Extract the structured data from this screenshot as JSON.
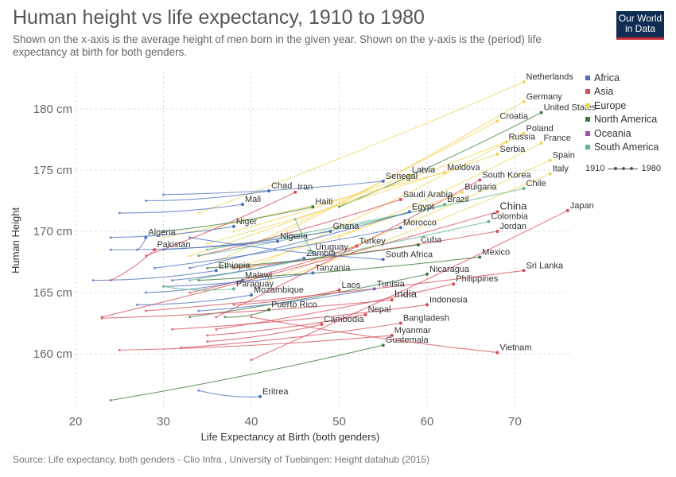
{
  "header": {
    "title": "Human height vs life expectancy, 1910 to 1980",
    "subtitle": "Shown on the x-axis is the average height of men born in the given year. Shown on the y-axis is the (period) life expectancy at birth for both genders.",
    "logo_line1": "Our World",
    "logo_line2": "in Data",
    "source": "Source: Life expectancy, both genders - Clio Infra , University of Tuebingen: Height datahub (2015)"
  },
  "legend": {
    "regions": [
      {
        "name": "Africa",
        "color": "#4c6fbf"
      },
      {
        "name": "Asia",
        "color": "#d64b55"
      },
      {
        "name": "Europe",
        "color": "#f2d35a"
      },
      {
        "name": "North America",
        "color": "#3a7a3a"
      },
      {
        "name": "Oceania",
        "color": "#a64cb5"
      },
      {
        "name": "South America",
        "color": "#5cb88a"
      }
    ],
    "timeline_start": "1910",
    "timeline_end": "1980"
  },
  "chart_data": {
    "type": "scatter",
    "xlabel": "Life Expectancy at Birth (both genders)",
    "ylabel": "Human Height",
    "x_ticks": [
      "20",
      "30",
      "40",
      "50",
      "60",
      "70"
    ],
    "y_ticks": [
      "160 cm",
      "165 cm",
      "170 cm",
      "175 cm",
      "180 cm"
    ],
    "xlim": [
      20,
      76
    ],
    "ylim": [
      156,
      182.8
    ],
    "grid": true,
    "legend_position": "right",
    "countries": [
      {
        "name": "Netherlands",
        "region": "Europe",
        "x": 71,
        "y": 182.2,
        "start": [
          34,
          171.5
        ]
      },
      {
        "name": "Germany",
        "region": "Europe",
        "x": 71,
        "y": 180.6,
        "start": [
          44,
          170.0
        ]
      },
      {
        "name": "United States",
        "region": "North America",
        "x": 73,
        "y": 179.7,
        "start": [
          50,
          172.0
        ]
      },
      {
        "name": "Croatia",
        "region": "Europe",
        "x": 68,
        "y": 179.0,
        "start": [
          36,
          167.5
        ]
      },
      {
        "name": "Poland",
        "region": "Europe",
        "x": 71,
        "y": 178.0,
        "start": [
          40,
          167.0
        ]
      },
      {
        "name": "France",
        "region": "Europe",
        "x": 73,
        "y": 177.2,
        "start": [
          50,
          169.5
        ]
      },
      {
        "name": "Russia",
        "region": "Europe",
        "x": 69,
        "y": 177.3,
        "start": [
          33,
          168.0
        ]
      },
      {
        "name": "Serbia",
        "region": "Europe",
        "x": 68,
        "y": 176.3,
        "start": [
          35,
          169.0
        ]
      },
      {
        "name": "Spain",
        "region": "Europe",
        "x": 74,
        "y": 175.8,
        "start": [
          42,
          166.0
        ]
      },
      {
        "name": "Italy",
        "region": "Europe",
        "x": 74,
        "y": 174.7,
        "start": [
          45,
          166.5
        ]
      },
      {
        "name": "Latvia",
        "region": "Europe",
        "x": 58,
        "y": 174.6,
        "start": [
          38,
          170.0
        ]
      },
      {
        "name": "Moldova",
        "region": "Europe",
        "x": 62,
        "y": 174.8,
        "start": [
          30,
          169.5
        ]
      },
      {
        "name": "South Korea",
        "region": "Asia",
        "x": 66,
        "y": 174.2,
        "start": [
          36,
          163.0
        ]
      },
      {
        "name": "Senegal",
        "region": "Africa",
        "x": 55,
        "y": 174.1,
        "start": [
          30,
          173.0
        ]
      },
      {
        "name": "Chile",
        "region": "South America",
        "x": 71,
        "y": 173.5,
        "start": [
          35,
          168.5
        ]
      },
      {
        "name": "Chad",
        "region": "Africa",
        "x": 42,
        "y": 173.3,
        "start": [
          28,
          172.5
        ]
      },
      {
        "name": "Iran",
        "region": "Asia",
        "x": 45,
        "y": 173.2,
        "start": [
          28,
          168.0
        ]
      },
      {
        "name": "Bulgaria",
        "region": "Europe",
        "x": 64,
        "y": 173.2,
        "start": [
          38,
          167.0
        ]
      },
      {
        "name": "Saudi Arabia",
        "region": "Asia",
        "x": 57,
        "y": 172.6,
        "start": [
          34,
          168.0
        ]
      },
      {
        "name": "Mali",
        "region": "Africa",
        "x": 39,
        "y": 172.2,
        "start": [
          25,
          171.5
        ]
      },
      {
        "name": "Haiti",
        "region": "North America",
        "x": 47,
        "y": 172.0,
        "start": [
          30,
          170.0
        ]
      },
      {
        "name": "Brazil",
        "region": "South America",
        "x": 62,
        "y": 172.2,
        "start": [
          34,
          168.0
        ]
      },
      {
        "name": "China",
        "region": "Asia",
        "x": 68,
        "y": 171.6,
        "start": [
          23,
          163.0
        ]
      },
      {
        "name": "Egypt",
        "region": "Africa",
        "x": 58,
        "y": 171.6,
        "start": [
          33,
          167.0
        ]
      },
      {
        "name": "Colombia",
        "region": "South America",
        "x": 67,
        "y": 170.8,
        "start": [
          33,
          166.0
        ]
      },
      {
        "name": "Niger",
        "region": "Africa",
        "x": 38,
        "y": 170.4,
        "start": [
          24,
          169.5
        ]
      },
      {
        "name": "Ghana",
        "region": "Africa",
        "x": 49,
        "y": 170.0,
        "start": [
          30,
          168.5
        ]
      },
      {
        "name": "Morocco",
        "region": "Africa",
        "x": 57,
        "y": 170.3,
        "start": [
          29,
          167.0
        ]
      },
      {
        "name": "Jordan",
        "region": "Asia",
        "x": 68,
        "y": 170.0,
        "start": [
          38,
          167.0
        ]
      },
      {
        "name": "Japan",
        "region": "Asia",
        "x": 76,
        "y": 171.7,
        "start": [
          40,
          159.5
        ]
      },
      {
        "name": "Algeria",
        "region": "Africa",
        "x": 28,
        "y": 169.5,
        "start": [
          27,
          168.5
        ]
      },
      {
        "name": "Nigeria",
        "region": "Africa",
        "x": 43,
        "y": 169.2,
        "start": [
          24,
          168.5
        ]
      },
      {
        "name": "Turkey",
        "region": "Asia",
        "x": 52,
        "y": 168.8,
        "start": [
          33,
          165.0
        ]
      },
      {
        "name": "Cuba",
        "region": "North America",
        "x": 59,
        "y": 168.9,
        "start": [
          35,
          167.0
        ]
      },
      {
        "name": "Pakistan",
        "region": "Asia",
        "x": 29,
        "y": 168.5,
        "start": [
          24,
          166.0
        ]
      },
      {
        "name": "Uruguay",
        "region": "South America",
        "x": 47,
        "y": 168.3,
        "start": [
          45,
          171.0
        ]
      },
      {
        "name": "Zambia",
        "region": "Africa",
        "x": 46,
        "y": 167.8,
        "start": [
          31,
          166.0
        ]
      },
      {
        "name": "Mexico",
        "region": "North America",
        "x": 66,
        "y": 167.9,
        "start": [
          34,
          166.0
        ]
      },
      {
        "name": "South Africa",
        "region": "Africa",
        "x": 55,
        "y": 167.7,
        "start": [
          33,
          169.5
        ]
      },
      {
        "name": "Ethiopia",
        "region": "Africa",
        "x": 36,
        "y": 166.8,
        "start": [
          22,
          166.0
        ]
      },
      {
        "name": "Tanzania",
        "region": "Africa",
        "x": 47,
        "y": 166.6,
        "start": [
          30,
          165.5
        ]
      },
      {
        "name": "Nicaragua",
        "region": "North America",
        "x": 60,
        "y": 166.5,
        "start": [
          33,
          163.0
        ]
      },
      {
        "name": "Malawi",
        "region": "Africa",
        "x": 39,
        "y": 166.0,
        "start": [
          28,
          165.0
        ]
      },
      {
        "name": "Philippines",
        "region": "Asia",
        "x": 63,
        "y": 165.7,
        "start": [
          36,
          162.0
        ]
      },
      {
        "name": "Sri Lanka",
        "region": "Asia",
        "x": 71,
        "y": 166.8,
        "start": [
          28,
          163.5
        ]
      },
      {
        "name": "Paraguay",
        "region": "South America",
        "x": 38,
        "y": 165.3,
        "start": [
          30,
          165.5
        ]
      },
      {
        "name": "Laos",
        "region": "Asia",
        "x": 50,
        "y": 165.2,
        "start": [
          38,
          164.0
        ]
      },
      {
        "name": "Tunisia",
        "region": "Africa",
        "x": 54,
        "y": 165.3,
        "start": [
          34,
          163.5
        ]
      },
      {
        "name": "Mozambique",
        "region": "Africa",
        "x": 40,
        "y": 164.8,
        "start": [
          27,
          164.0
        ]
      },
      {
        "name": "India",
        "region": "Asia",
        "x": 56,
        "y": 164.4,
        "start": [
          23,
          162.9
        ]
      },
      {
        "name": "Indonesia",
        "region": "Asia",
        "x": 60,
        "y": 164.0,
        "start": [
          31,
          162.0
        ]
      },
      {
        "name": "Puerto Rico",
        "region": "North America",
        "x": 42,
        "y": 163.6,
        "start": [
          37,
          163.0
        ]
      },
      {
        "name": "Nepal",
        "region": "Asia",
        "x": 53,
        "y": 163.2,
        "start": [
          35,
          161.5
        ]
      },
      {
        "name": "Cambodia",
        "region": "Asia",
        "x": 48,
        "y": 162.4,
        "start": [
          35,
          161.0
        ]
      },
      {
        "name": "Bangladesh",
        "region": "Asia",
        "x": 57,
        "y": 162.5,
        "start": [
          32,
          160.5
        ]
      },
      {
        "name": "Myanmar",
        "region": "Asia",
        "x": 56,
        "y": 161.5,
        "start": [
          25,
          160.3
        ]
      },
      {
        "name": "Guatemala",
        "region": "North America",
        "x": 55,
        "y": 160.7,
        "start": [
          24,
          156.2
        ]
      },
      {
        "name": "Vietnam",
        "region": "Asia",
        "x": 68,
        "y": 160.1,
        "start": [
          40,
          163.0
        ]
      },
      {
        "name": "Eritrea",
        "region": "Africa",
        "x": 41,
        "y": 156.5,
        "start": [
          34,
          157.0
        ]
      }
    ]
  }
}
